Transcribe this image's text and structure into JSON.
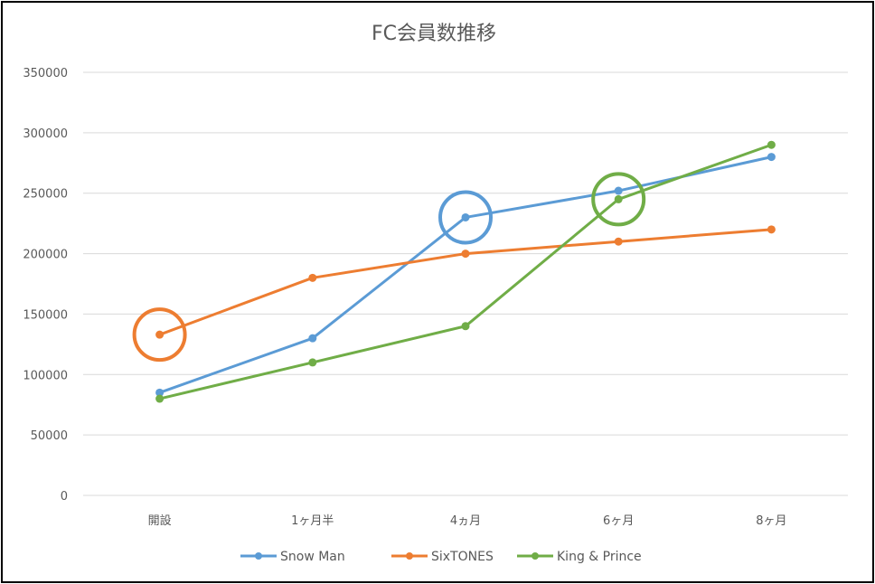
{
  "chart_data": {
    "type": "line",
    "title": "FC会員数推移",
    "xlabel": "",
    "ylabel": "",
    "categories": [
      "開設",
      "1ヶ月半",
      "4ヵ月",
      "6ヶ月",
      "8ヶ月"
    ],
    "ylim": [
      0,
      350000
    ],
    "yticks": [
      "0",
      "50000",
      "100000",
      "150000",
      "200000",
      "250000",
      "300000",
      "350000"
    ],
    "grid": true,
    "legend_position": "bottom",
    "series": [
      {
        "name": "Snow Man",
        "color": "#5B9BD5",
        "values": [
          85000,
          130000,
          230000,
          252000,
          280000
        ]
      },
      {
        "name": "SixTONES",
        "color": "#ED7D31",
        "values": [
          133000,
          180000,
          200000,
          210000,
          220000
        ]
      },
      {
        "name": "King & Prince",
        "color": "#70AD47",
        "values": [
          80000,
          110000,
          140000,
          245000,
          290000
        ]
      }
    ],
    "highlights": [
      {
        "series": 1,
        "category": 0,
        "color": "#ED7D31"
      },
      {
        "series": 0,
        "category": 2,
        "color": "#5B9BD5"
      },
      {
        "series": 2,
        "category": 3,
        "color": "#70AD47"
      }
    ]
  }
}
